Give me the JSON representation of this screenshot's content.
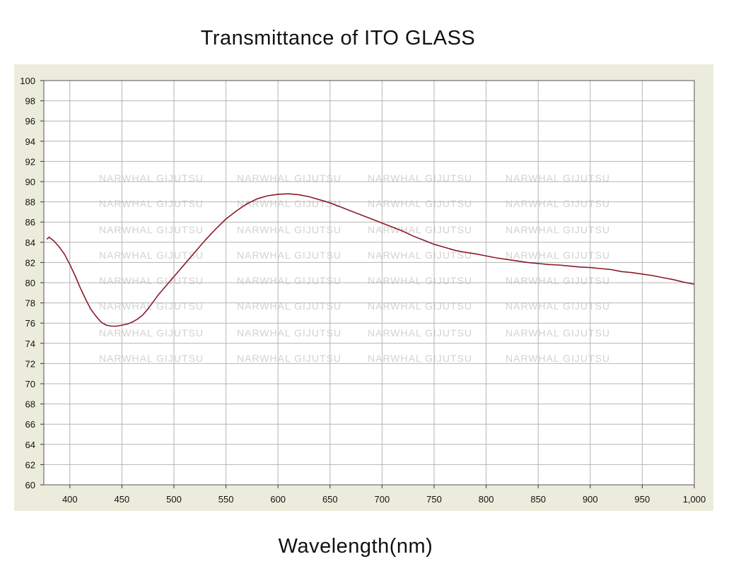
{
  "chart_data": {
    "type": "line",
    "title": "Transmittance of ITO GLASS",
    "xlabel": "Wavelength(nm)",
    "ylabel": "",
    "xlim": [
      375,
      1000
    ],
    "ylim": [
      60,
      100
    ],
    "x_ticks": [
      400,
      450,
      500,
      550,
      600,
      650,
      700,
      750,
      800,
      850,
      900,
      950,
      1000
    ],
    "x_tick_labels": [
      "400",
      "450",
      "500",
      "550",
      "600",
      "650",
      "700",
      "750",
      "800",
      "850",
      "900",
      "950",
      "1,000"
    ],
    "y_ticks": [
      60,
      62,
      64,
      66,
      68,
      70,
      72,
      74,
      76,
      78,
      80,
      82,
      84,
      86,
      88,
      90,
      92,
      94,
      96,
      98,
      100
    ],
    "grid": true,
    "watermark": "NARWHAL GIJUTSU",
    "colors": {
      "line": "#8b1a2b",
      "panel": "#ececdc",
      "plot_bg": "#ffffff",
      "grid": "#b4b4b4"
    },
    "series": [
      {
        "x": [
          378,
          380,
          385,
          390,
          395,
          400,
          405,
          410,
          415,
          420,
          425,
          430,
          435,
          440,
          445,
          450,
          455,
          460,
          465,
          470,
          475,
          480,
          485,
          490,
          495,
          500,
          510,
          520,
          530,
          540,
          550,
          560,
          570,
          580,
          590,
          600,
          610,
          620,
          630,
          640,
          650,
          660,
          670,
          680,
          690,
          700,
          710,
          720,
          730,
          740,
          750,
          760,
          770,
          780,
          790,
          800,
          810,
          820,
          830,
          840,
          850,
          860,
          870,
          880,
          890,
          900,
          910,
          920,
          930,
          940,
          950,
          960,
          970,
          980,
          990,
          1000
        ],
        "y": [
          84.3,
          84.5,
          84.1,
          83.5,
          82.8,
          81.8,
          80.7,
          79.5,
          78.4,
          77.4,
          76.7,
          76.1,
          75.8,
          75.7,
          75.7,
          75.8,
          75.9,
          76.1,
          76.4,
          76.8,
          77.4,
          78.1,
          78.8,
          79.4,
          80.0,
          80.6,
          81.8,
          83.0,
          84.2,
          85.3,
          86.3,
          87.1,
          87.8,
          88.3,
          88.6,
          88.75,
          88.8,
          88.7,
          88.5,
          88.2,
          87.9,
          87.5,
          87.1,
          86.7,
          86.3,
          85.9,
          85.5,
          85.1,
          84.6,
          84.2,
          83.8,
          83.5,
          83.2,
          83.0,
          82.85,
          82.65,
          82.45,
          82.3,
          82.15,
          82.0,
          81.9,
          81.8,
          81.75,
          81.65,
          81.55,
          81.5,
          81.4,
          81.3,
          81.1,
          81.0,
          80.85,
          80.7,
          80.5,
          80.3,
          80.05,
          79.85
        ]
      }
    ]
  }
}
